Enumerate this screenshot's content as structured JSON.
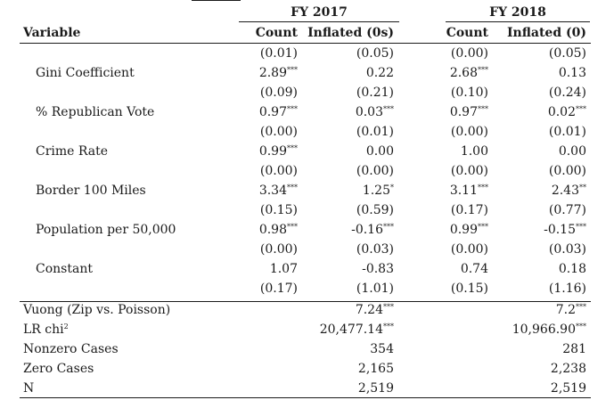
{
  "header": {
    "group1": "FY 2017",
    "group2": "FY 2018",
    "variable": "Variable",
    "count1": "Count",
    "inflated1": "Inflated (0s)",
    "count2": "Count",
    "inflated2": "Inflated (0)"
  },
  "rows": [
    {
      "label": "",
      "c1": "(0.01)",
      "c1s": "",
      "i1": "(0.05)",
      "i1s": "",
      "c2": "(0.00)",
      "c2s": "",
      "i2": "(0.05)",
      "i2s": ""
    },
    {
      "label": "Gini Coefficient",
      "c1": "2.89",
      "c1s": "***",
      "i1": "0.22",
      "i1s": "",
      "c2": "2.68",
      "c2s": "***",
      "i2": "0.13",
      "i2s": ""
    },
    {
      "label": "",
      "c1": "(0.09)",
      "c1s": "",
      "i1": "(0.21)",
      "i1s": "",
      "c2": "(0.10)",
      "c2s": "",
      "i2": "(0.24)",
      "i2s": ""
    },
    {
      "label": "% Republican Vote",
      "c1": "0.97",
      "c1s": "***",
      "i1": "0.03",
      "i1s": "***",
      "c2": "0.97",
      "c2s": "***",
      "i2": "0.02",
      "i2s": "***"
    },
    {
      "label": "",
      "c1": "(0.00)",
      "c1s": "",
      "i1": "(0.01)",
      "i1s": "",
      "c2": "(0.00)",
      "c2s": "",
      "i2": "(0.01)",
      "i2s": ""
    },
    {
      "label": "Crime Rate",
      "c1": "0.99",
      "c1s": "***",
      "i1": "0.00",
      "i1s": "",
      "c2": "1.00",
      "c2s": "",
      "i2": "0.00",
      "i2s": ""
    },
    {
      "label": "",
      "c1": "(0.00)",
      "c1s": "",
      "i1": "(0.00)",
      "i1s": "",
      "c2": "(0.00)",
      "c2s": "",
      "i2": "(0.00)",
      "i2s": ""
    },
    {
      "label": "Border 100 Miles",
      "c1": "3.34",
      "c1s": "***",
      "i1": "1.25",
      "i1s": "*",
      "c2": "3.11",
      "c2s": "***",
      "i2": "2.43",
      "i2s": "**"
    },
    {
      "label": "",
      "c1": "(0.15)",
      "c1s": "",
      "i1": "(0.59)",
      "i1s": "",
      "c2": "(0.17)",
      "c2s": "",
      "i2": "(0.77)",
      "i2s": ""
    },
    {
      "label": "Population per 50,000",
      "c1": "0.98",
      "c1s": "***",
      "i1": "-0.16",
      "i1s": "***",
      "c2": "0.99",
      "c2s": "***",
      "i2": "-0.15",
      "i2s": "***"
    },
    {
      "label": "",
      "c1": "(0.00)",
      "c1s": "",
      "i1": "(0.03)",
      "i1s": "",
      "c2": "(0.00)",
      "c2s": "",
      "i2": "(0.03)",
      "i2s": ""
    },
    {
      "label": "Constant",
      "c1": "1.07",
      "c1s": "",
      "i1": "-0.83",
      "i1s": "",
      "c2": "0.74",
      "c2s": "",
      "i2": "0.18",
      "i2s": ""
    },
    {
      "label": "",
      "c1": "(0.17)",
      "c1s": "",
      "i1": "(1.01)",
      "i1s": "",
      "c2": "(0.15)",
      "c2s": "",
      "i2": "(1.16)",
      "i2s": ""
    }
  ],
  "stats": [
    {
      "label": "Vuong (Zip vs. Poisson)",
      "labelsup": "",
      "v1": "7.24",
      "v1s": "***",
      "v2": "7.2",
      "v2s": "***"
    },
    {
      "label": "LR chi",
      "labelsup": "2",
      "v1": "20,477.14",
      "v1s": "***",
      "v2": "10,966.90",
      "v2s": "***"
    },
    {
      "label": "Nonzero Cases",
      "labelsup": "",
      "v1": "354",
      "v1s": "",
      "v2": "281",
      "v2s": ""
    },
    {
      "label": "Zero Cases",
      "labelsup": "",
      "v1": "2,165",
      "v1s": "",
      "v2": "2,238",
      "v2s": ""
    },
    {
      "label": "N",
      "labelsup": "",
      "v1": "2,519",
      "v1s": "",
      "v2": "2,519",
      "v2s": ""
    }
  ]
}
